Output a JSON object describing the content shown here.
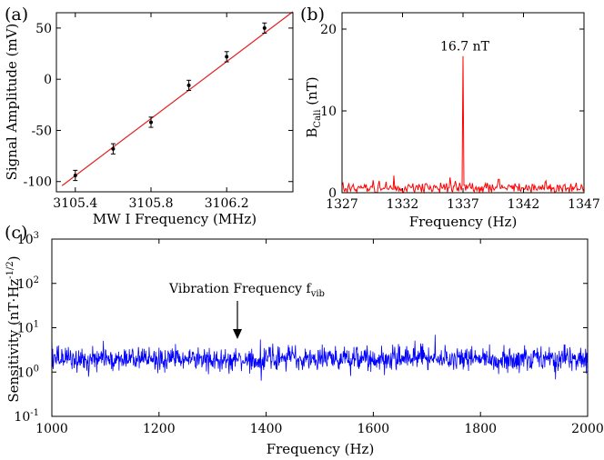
{
  "chart_data": [
    {
      "panel": "(a)",
      "type": "scatter",
      "xlabel": "MW I Frequency (MHz)",
      "ylabel": "Signal Amplitude (mV)",
      "xlim": [
        3105.3,
        3106.55
      ],
      "ylim": [
        -110,
        65
      ],
      "xticks": [
        3105.4,
        3105.8,
        3106.2
      ],
      "xtick_labels": [
        "3105.4",
        "3105.8",
        "3106.2"
      ],
      "yticks": [
        50,
        0,
        -50,
        -100
      ],
      "ytick_labels": [
        "50",
        "0",
        "-50",
        "-100"
      ],
      "points": [
        {
          "x": 3105.4,
          "y": -94,
          "err": 5
        },
        {
          "x": 3105.6,
          "y": -68,
          "err": 5
        },
        {
          "x": 3105.8,
          "y": -42,
          "err": 5
        },
        {
          "x": 3106.0,
          "y": -6,
          "err": 5
        },
        {
          "x": 3106.2,
          "y": 22,
          "err": 5
        },
        {
          "x": 3106.4,
          "y": 50,
          "err": 5
        }
      ],
      "fit_line": {
        "x": [
          3105.33,
          3106.55
        ],
        "y": [
          -104,
          66
        ]
      },
      "colors": {
        "points": "#000000",
        "fit": "#e32020"
      }
    },
    {
      "panel": "(b)",
      "type": "line",
      "xlabel": "Frequency (Hz)",
      "ylabel_main": "B",
      "ylabel_sub": "Cali",
      "ylabel_unit": " (nT)",
      "xlim": [
        1327,
        1347
      ],
      "ylim": [
        0,
        22
      ],
      "xticks": [
        1327,
        1332,
        1337,
        1342,
        1347
      ],
      "xtick_labels": [
        "1327",
        "1332",
        "1337",
        "1342",
        "1347"
      ],
      "yticks": [
        0,
        10,
        20
      ],
      "ytick_labels": [
        "0",
        "10",
        "20"
      ],
      "peak": {
        "x": 1337,
        "y": 16.7
      },
      "peak_label": "16.7 nT",
      "noise_level": 0.6,
      "color": "#ff0000"
    },
    {
      "panel": "(c)",
      "type": "line",
      "xlabel": "Frequency (Hz)",
      "ylabel_main": "Sensitivity (nT·Hz",
      "ylabel_sup": "-1/2",
      "ylabel_end": ")",
      "scale_y": "log",
      "xlim": [
        1000,
        2000
      ],
      "ylim_exp": [
        -1,
        3
      ],
      "xticks": [
        1000,
        1200,
        1400,
        1600,
        1800,
        2000
      ],
      "xtick_labels": [
        "1000",
        "1200",
        "1400",
        "1600",
        "1800",
        "2000"
      ],
      "yticks_exp": [
        3,
        2,
        1,
        0,
        -1
      ],
      "ytick_base": "10",
      "ytick_exps": [
        "3",
        "2",
        "1",
        "0",
        "-1"
      ],
      "median_value": 2.0,
      "annotation_main": "Vibration Frequency f",
      "annotation_sub": "vib",
      "annotation_x": 1350,
      "color": "#0000ff"
    }
  ]
}
